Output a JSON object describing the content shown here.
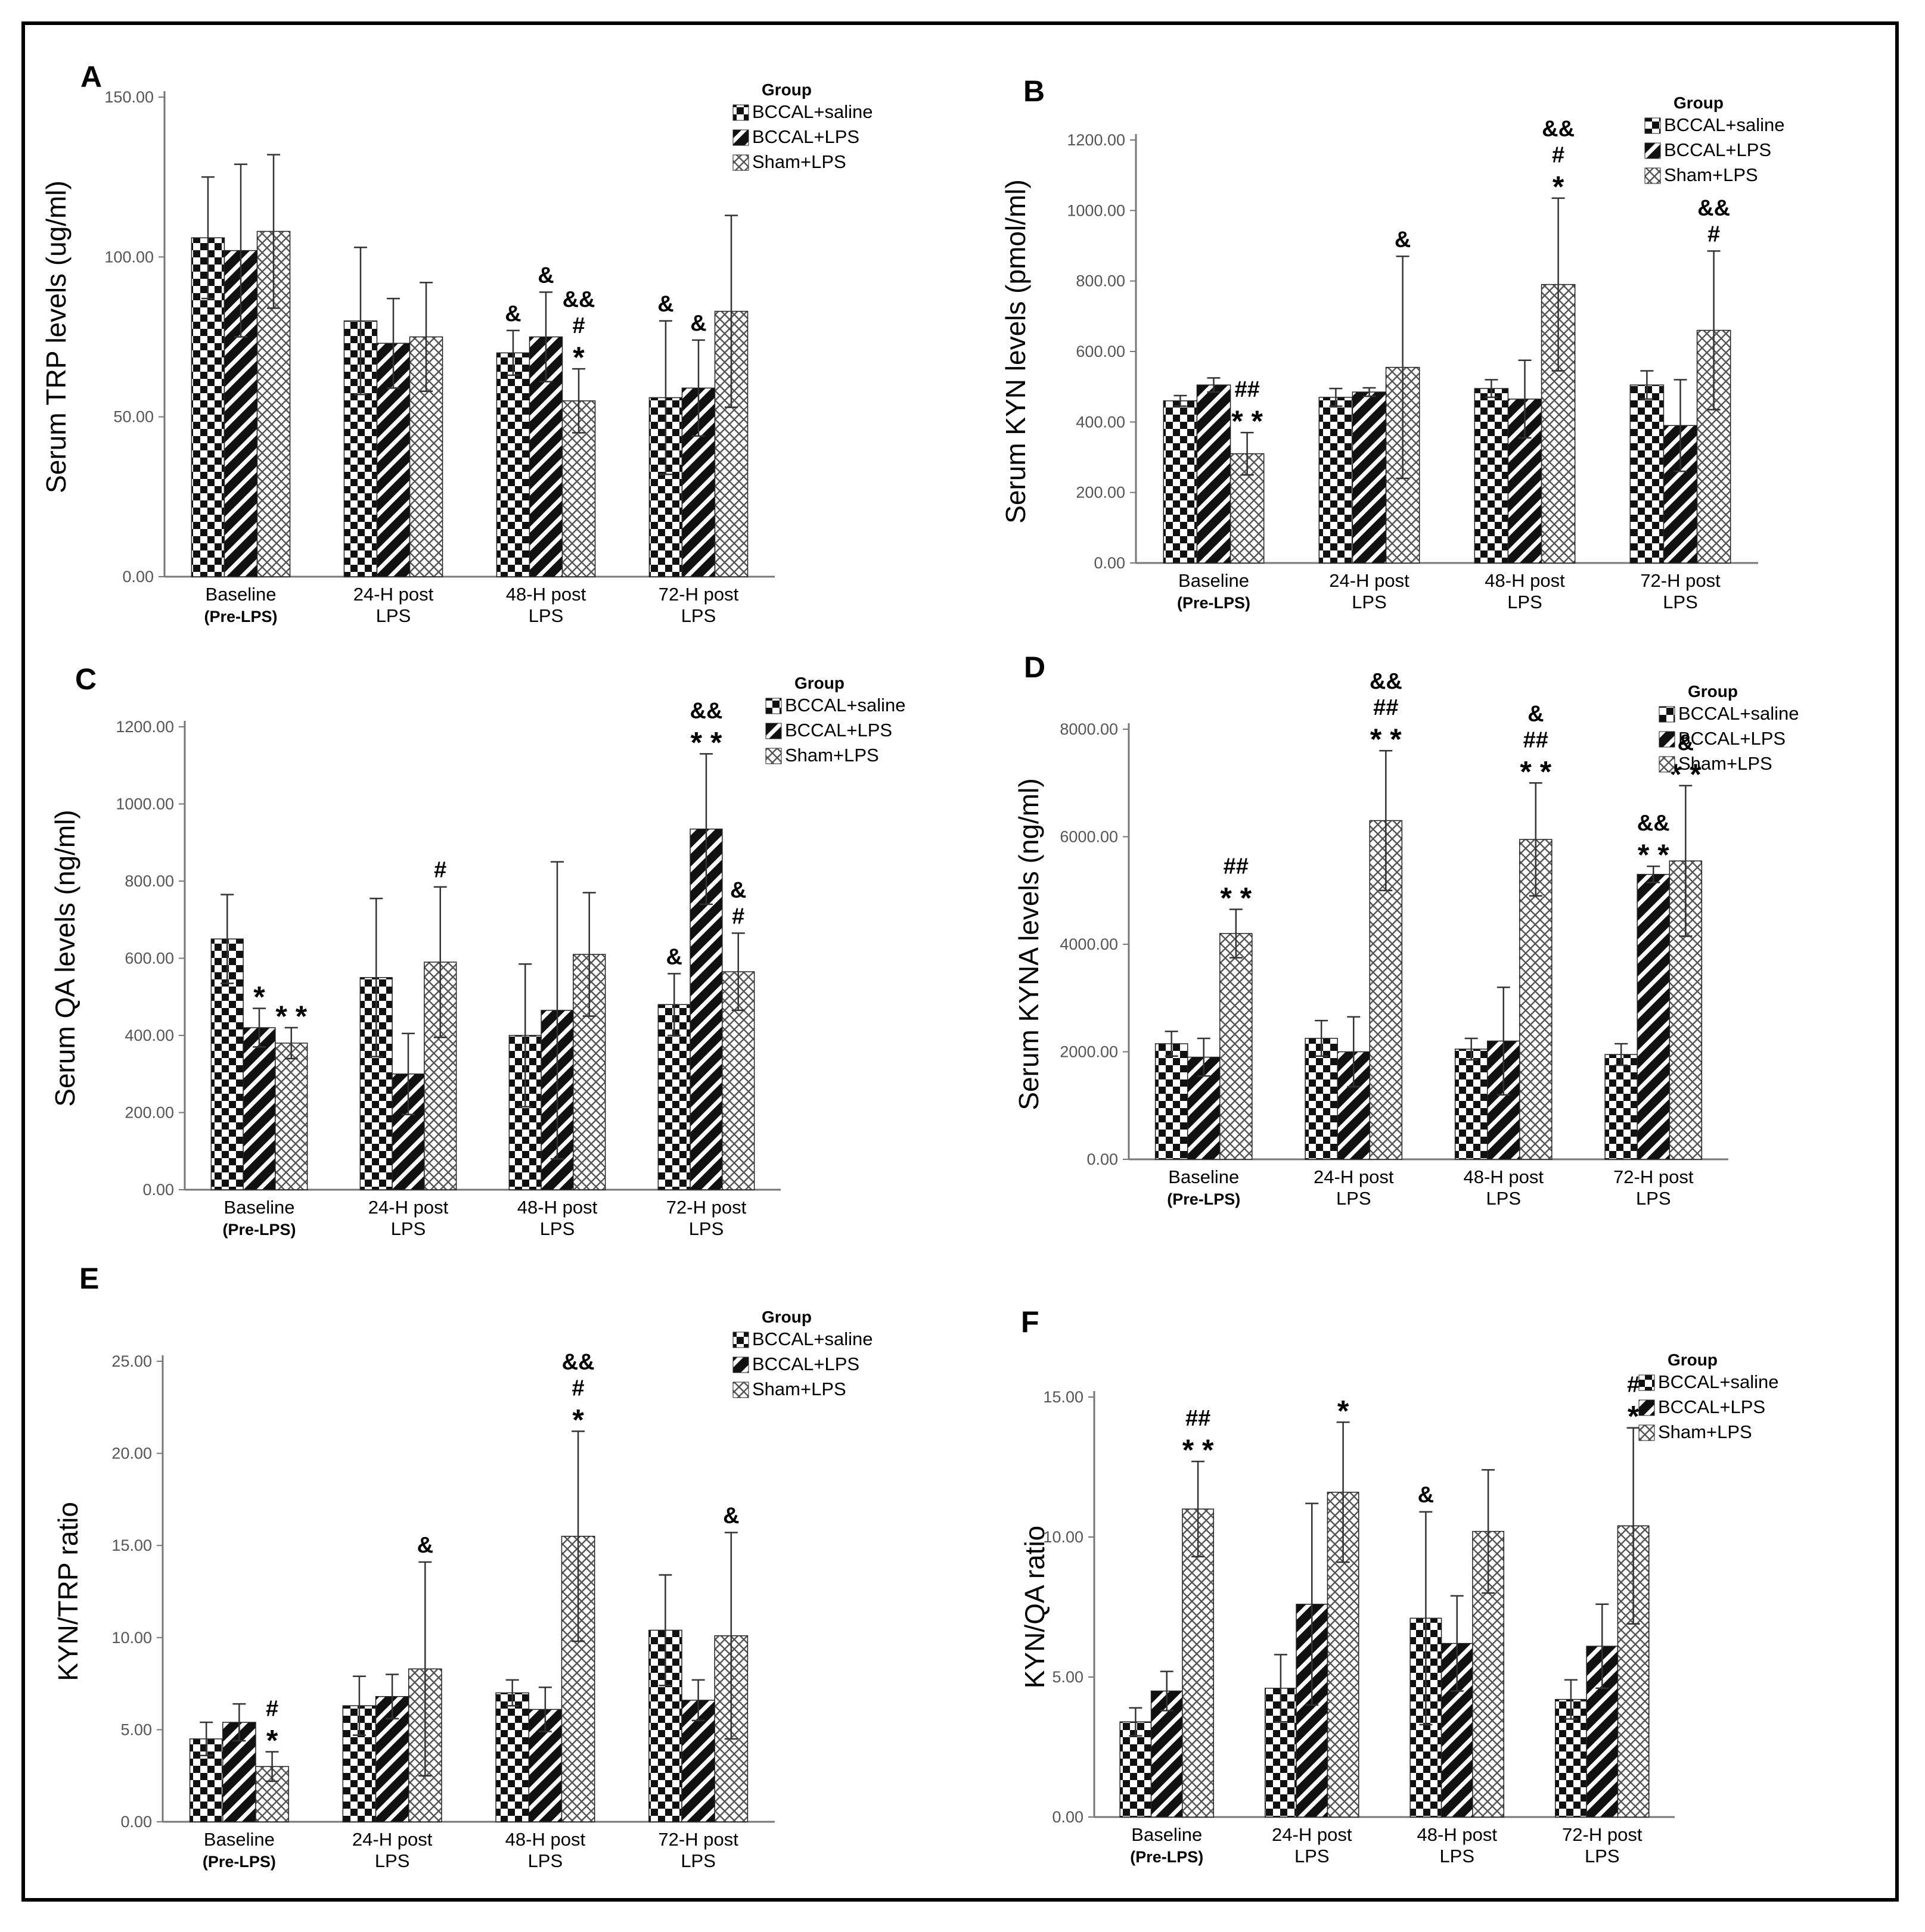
{
  "legend_title": "Group",
  "series_names": [
    "BCCAL+saline",
    "BCCAL+LPS",
    "Sham+LPS"
  ],
  "chart_data": [
    {
      "panel": "A",
      "type": "bar",
      "ylabel": "Serum TRP levels (ug/ml)",
      "ylim": [
        0,
        150
      ],
      "yticks": [
        "0.00",
        "50.00",
        "100.00",
        "150.00"
      ],
      "categories": [
        [
          "Baseline",
          "(Pre-LPS)"
        ],
        [
          "24-H post",
          "LPS"
        ],
        [
          "48-H post",
          "LPS"
        ],
        [
          "72-H post",
          "LPS"
        ]
      ],
      "series": [
        {
          "name": "BCCAL+saline",
          "values": [
            106,
            80,
            70,
            56
          ],
          "err": [
            19,
            23,
            7,
            24
          ]
        },
        {
          "name": "BCCAL+LPS",
          "values": [
            102,
            73,
            75,
            59
          ],
          "err": [
            27,
            14,
            14,
            15
          ]
        },
        {
          "name": "Sham+LPS",
          "values": [
            108,
            75,
            55,
            83
          ],
          "err": [
            24,
            17,
            10,
            30
          ]
        }
      ],
      "annotations": [
        {
          "category": 2,
          "series": 0,
          "lines": [
            "&"
          ]
        },
        {
          "category": 2,
          "series": 1,
          "lines": [
            "&"
          ]
        },
        {
          "category": 2,
          "series": 2,
          "lines": [
            "&&",
            "#",
            "*"
          ]
        },
        {
          "category": 3,
          "series": 0,
          "lines": [
            "&"
          ]
        },
        {
          "category": 3,
          "series": 1,
          "lines": [
            "&"
          ]
        }
      ]
    },
    {
      "panel": "B",
      "type": "bar",
      "ylabel": "Serum KYN levels (pmol/ml)",
      "ylim": [
        0,
        1200
      ],
      "yticks": [
        "0.00",
        "200.00",
        "400.00",
        "600.00",
        "800.00",
        "1000.00",
        "1200.00"
      ],
      "categories": [
        [
          "Baseline",
          "(Pre-LPS)"
        ],
        [
          "24-H post",
          "LPS"
        ],
        [
          "48-H post",
          "LPS"
        ],
        [
          "72-H post",
          "LPS"
        ]
      ],
      "series": [
        {
          "name": "BCCAL+saline",
          "values": [
            460,
            470,
            495,
            505
          ],
          "err": [
            15,
            25,
            25,
            40
          ]
        },
        {
          "name": "BCCAL+LPS",
          "values": [
            505,
            485,
            465,
            390
          ],
          "err": [
            20,
            12,
            110,
            130
          ]
        },
        {
          "name": "Sham+LPS",
          "values": [
            310,
            555,
            790,
            660
          ],
          "err": [
            60,
            315,
            245,
            225
          ]
        }
      ],
      "annotations": [
        {
          "category": 0,
          "series": 2,
          "lines": [
            "##",
            "**"
          ]
        },
        {
          "category": 1,
          "series": 2,
          "lines": [
            "&"
          ]
        },
        {
          "category": 2,
          "series": 2,
          "lines": [
            "&&",
            "#",
            "*"
          ]
        },
        {
          "category": 3,
          "series": 2,
          "lines": [
            "&&",
            "#"
          ]
        }
      ]
    },
    {
      "panel": "C",
      "type": "bar",
      "ylabel": "Serum QA levels (ng/ml)",
      "ylim": [
        0,
        1200
      ],
      "yticks": [
        "0.00",
        "200.00",
        "400.00",
        "600.00",
        "800.00",
        "1000.00",
        "1200.00"
      ],
      "categories": [
        [
          "Baseline",
          "(Pre-LPS)"
        ],
        [
          "24-H post",
          "LPS"
        ],
        [
          "48-H post",
          "LPS"
        ],
        [
          "72-H post",
          "LPS"
        ]
      ],
      "series": [
        {
          "name": "BCCAL+saline",
          "values": [
            650,
            550,
            400,
            480
          ],
          "err": [
            115,
            205,
            185,
            80
          ]
        },
        {
          "name": "BCCAL+LPS",
          "values": [
            420,
            300,
            465,
            935
          ],
          "err": [
            50,
            105,
            385,
            195
          ]
        },
        {
          "name": "Sham+LPS",
          "values": [
            380,
            590,
            610,
            565
          ],
          "err": [
            40,
            195,
            160,
            100
          ]
        }
      ],
      "annotations": [
        {
          "category": 0,
          "series": 1,
          "lines": [
            "*"
          ]
        },
        {
          "category": 0,
          "series": 2,
          "lines": [
            "**"
          ]
        },
        {
          "category": 1,
          "series": 2,
          "lines": [
            "#"
          ]
        },
        {
          "category": 3,
          "series": 0,
          "lines": [
            "&"
          ]
        },
        {
          "category": 3,
          "series": 1,
          "lines": [
            "&&",
            "**"
          ]
        },
        {
          "category": 3,
          "series": 2,
          "lines": [
            "&",
            "#"
          ]
        }
      ]
    },
    {
      "panel": "D",
      "type": "bar",
      "ylabel": "Serum KYNA levels (ng/ml)",
      "ylim": [
        0,
        8000
      ],
      "yticks": [
        "0.00",
        "2000.00",
        "4000.00",
        "6000.00",
        "8000.00"
      ],
      "categories": [
        [
          "Baseline",
          "(Pre-LPS)"
        ],
        [
          "24-H post",
          "LPS"
        ],
        [
          "48-H post",
          "LPS"
        ],
        [
          "72-H post",
          "LPS"
        ]
      ],
      "series": [
        {
          "name": "BCCAL+saline",
          "values": [
            2150,
            2250,
            2050,
            1950
          ],
          "err": [
            230,
            330,
            200,
            200
          ]
        },
        {
          "name": "BCCAL+LPS",
          "values": [
            1900,
            2000,
            2200,
            5300
          ],
          "err": [
            350,
            650,
            1000,
            150
          ]
        },
        {
          "name": "Sham+LPS",
          "values": [
            4200,
            6300,
            5950,
            5550
          ],
          "err": [
            450,
            1300,
            1050,
            1400
          ]
        }
      ],
      "annotations": [
        {
          "category": 0,
          "series": 2,
          "lines": [
            "##",
            "**"
          ]
        },
        {
          "category": 1,
          "series": 2,
          "lines": [
            "&&",
            "##",
            "**"
          ]
        },
        {
          "category": 2,
          "series": 2,
          "lines": [
            "&",
            "##",
            "**"
          ]
        },
        {
          "category": 3,
          "series": 1,
          "lines": [
            "&&",
            "**"
          ]
        },
        {
          "category": 3,
          "series": 2,
          "lines": [
            "&",
            "**"
          ]
        }
      ]
    },
    {
      "panel": "E",
      "type": "bar",
      "ylabel": "KYN/TRP ratio",
      "ylim": [
        0,
        25
      ],
      "yticks": [
        "0.00",
        "5.00",
        "10.00",
        "15.00",
        "20.00",
        "25.00"
      ],
      "categories": [
        [
          "Baseline",
          "(Pre-LPS)"
        ],
        [
          "24-H post",
          "LPS"
        ],
        [
          "48-H post",
          "LPS"
        ],
        [
          "72-H post",
          "LPS"
        ]
      ],
      "series": [
        {
          "name": "BCCAL+saline",
          "values": [
            4.5,
            6.3,
            7.0,
            10.4
          ],
          "err": [
            0.9,
            1.6,
            0.7,
            3.0
          ]
        },
        {
          "name": "BCCAL+LPS",
          "values": [
            5.4,
            6.8,
            6.1,
            6.6
          ],
          "err": [
            1.0,
            1.2,
            1.2,
            1.1
          ]
        },
        {
          "name": "Sham+LPS",
          "values": [
            3.0,
            8.3,
            15.5,
            10.1
          ],
          "err": [
            0.8,
            5.8,
            5.7,
            5.6
          ]
        }
      ],
      "annotations": [
        {
          "category": 0,
          "series": 2,
          "lines": [
            "#",
            "*"
          ]
        },
        {
          "category": 1,
          "series": 2,
          "lines": [
            "&"
          ]
        },
        {
          "category": 2,
          "series": 2,
          "lines": [
            "&&",
            "#",
            "*"
          ]
        },
        {
          "category": 3,
          "series": 2,
          "lines": [
            "&"
          ]
        }
      ]
    },
    {
      "panel": "F",
      "type": "bar",
      "ylabel": "KYN/QA ratio",
      "ylim": [
        0,
        15
      ],
      "yticks": [
        "0.00",
        "5.00",
        "10.00",
        "15.00"
      ],
      "categories": [
        [
          "Baseline",
          "(Pre-LPS)"
        ],
        [
          "24-H post",
          "LPS"
        ],
        [
          "48-H post",
          "LPS"
        ],
        [
          "72-H post",
          "LPS"
        ]
      ],
      "series": [
        {
          "name": "BCCAL+saline",
          "values": [
            3.4,
            4.6,
            7.1,
            4.2
          ],
          "err": [
            0.5,
            1.2,
            3.8,
            0.7
          ]
        },
        {
          "name": "BCCAL+LPS",
          "values": [
            4.5,
            7.6,
            6.2,
            6.1
          ],
          "err": [
            0.7,
            3.6,
            1.7,
            1.5
          ]
        },
        {
          "name": "Sham+LPS",
          "values": [
            11.0,
            11.6,
            10.2,
            10.4
          ],
          "err": [
            1.7,
            2.5,
            2.2,
            3.5
          ]
        }
      ],
      "annotations": [
        {
          "category": 0,
          "series": 2,
          "lines": [
            "##",
            "**"
          ]
        },
        {
          "category": 1,
          "series": 2,
          "lines": [
            "*"
          ]
        },
        {
          "category": 2,
          "series": 0,
          "lines": [
            "&"
          ]
        },
        {
          "category": 3,
          "series": 2,
          "lines": [
            "#",
            "*"
          ]
        }
      ]
    }
  ]
}
